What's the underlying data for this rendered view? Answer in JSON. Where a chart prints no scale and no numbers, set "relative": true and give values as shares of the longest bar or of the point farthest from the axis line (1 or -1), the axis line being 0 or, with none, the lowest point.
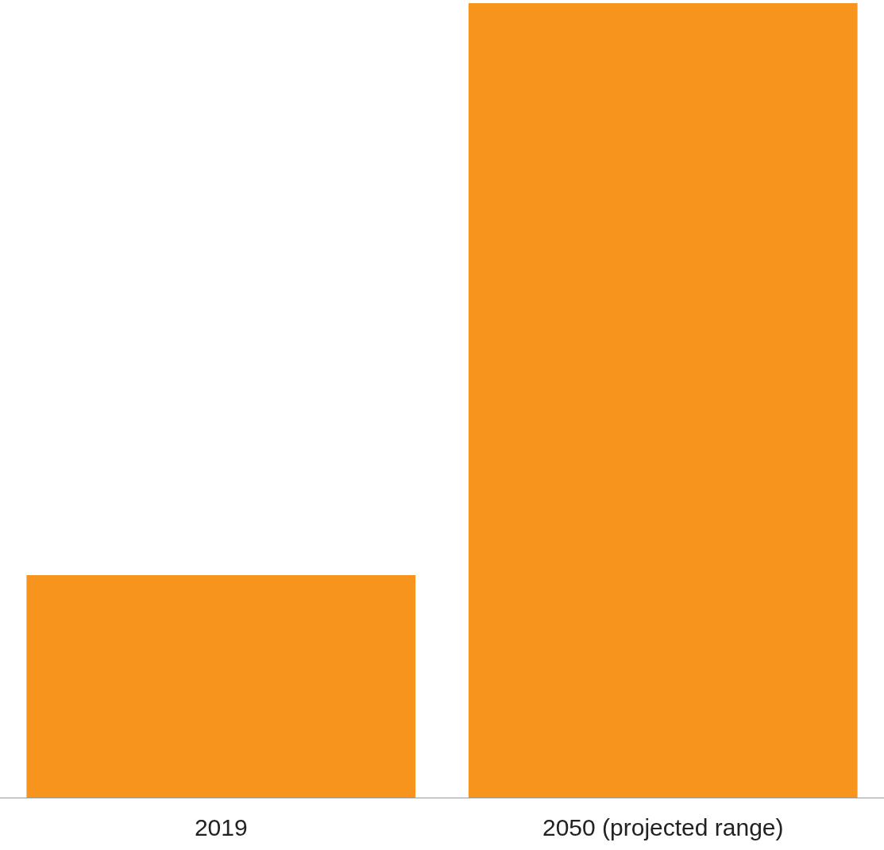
{
  "chart_data": {
    "type": "bar",
    "relative": true,
    "categories": [
      "2019",
      "2050 (projected range)"
    ],
    "values": [
      0.28,
      1
    ],
    "color": "#f7941d",
    "grid": false
  }
}
